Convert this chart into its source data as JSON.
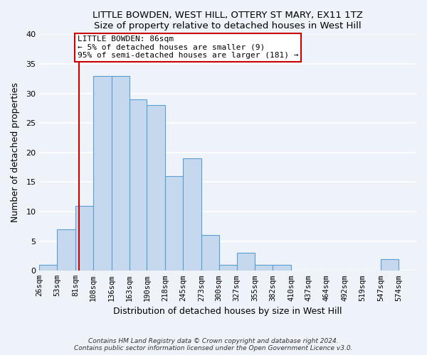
{
  "title": "LITTLE BOWDEN, WEST HILL, OTTERY ST MARY, EX11 1TZ",
  "subtitle": "Size of property relative to detached houses in West Hill",
  "xlabel": "Distribution of detached houses by size in West Hill",
  "ylabel": "Number of detached properties",
  "bar_color": "#c5d8ed",
  "bar_edge_color": "#5a9fd4",
  "background_color": "#eef2f9",
  "grid_color": "#ffffff",
  "bins": [
    26,
    53,
    81,
    108,
    136,
    163,
    190,
    218,
    245,
    273,
    300,
    327,
    355,
    382,
    410,
    437,
    464,
    492,
    519,
    547,
    574
  ],
  "counts": [
    1,
    7,
    11,
    33,
    33,
    29,
    28,
    16,
    19,
    6,
    1,
    3,
    1,
    1,
    0,
    0,
    0,
    0,
    0,
    2
  ],
  "tick_labels": [
    "26sqm",
    "53sqm",
    "81sqm",
    "108sqm",
    "136sqm",
    "163sqm",
    "190sqm",
    "218sqm",
    "245sqm",
    "273sqm",
    "300sqm",
    "327sqm",
    "355sqm",
    "382sqm",
    "410sqm",
    "437sqm",
    "464sqm",
    "492sqm",
    "519sqm",
    "547sqm",
    "574sqm"
  ],
  "ylim": [
    0,
    40
  ],
  "yticks": [
    0,
    5,
    10,
    15,
    20,
    25,
    30,
    35,
    40
  ],
  "vline_x": 86,
  "vline_color": "#cc0000",
  "annotation_title": "LITTLE BOWDEN: 86sqm",
  "annotation_line1": "← 5% of detached houses are smaller (9)",
  "annotation_line2": "95% of semi-detached houses are larger (181) →",
  "annotation_box_color": "#ffffff",
  "annotation_box_edge": "#cc0000",
  "footer1": "Contains HM Land Registry data © Crown copyright and database right 2024.",
  "footer2": "Contains public sector information licensed under the Open Government Licence v3.0."
}
